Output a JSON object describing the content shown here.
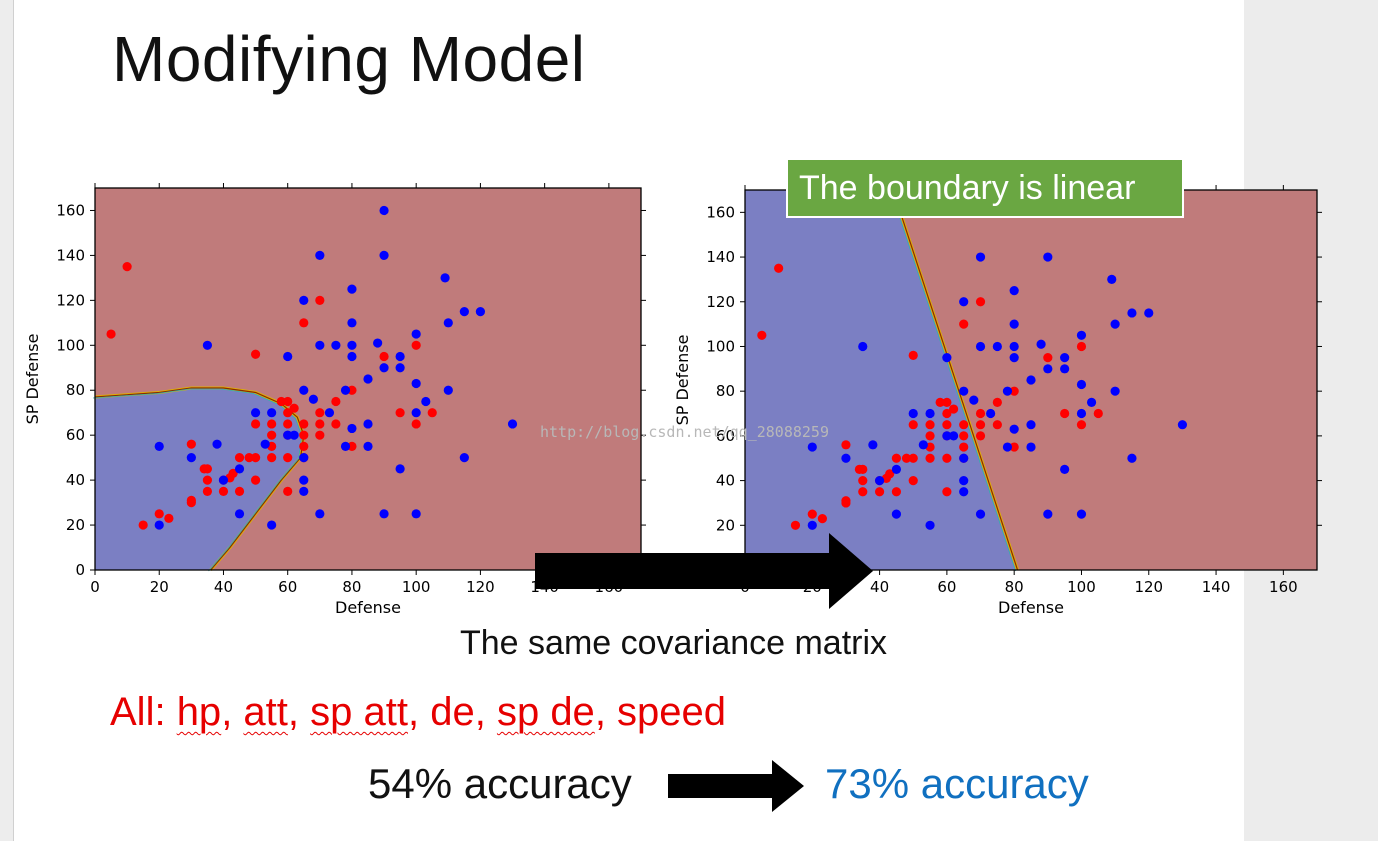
{
  "slide": {
    "title": "Modifying Model",
    "callout": "The boundary is linear",
    "covariance_note": "The same covariance matrix",
    "features_prefix": "All: ",
    "features": [
      "hp",
      "att",
      "sp att",
      "de",
      "sp de",
      "speed"
    ],
    "features_underlined": [
      true,
      true,
      true,
      false,
      true,
      false
    ],
    "accuracy_before": "54% accuracy",
    "accuracy_after": "73% accuracy",
    "watermark": "http://blog.csdn.net/qq_28088259"
  },
  "colors": {
    "class_red_region": "#c07b7b",
    "class_blue_region": "#7b7fc3",
    "red_points": "#ff0000",
    "blue_points": "#0000ff",
    "callout_bg": "#6aa742",
    "features_text": "#e60000",
    "accuracy_after_text": "#1070c0"
  },
  "chart_data": [
    {
      "type": "scatter",
      "title": "",
      "xlabel": "Defense",
      "ylabel": "SP Defense",
      "xlim": [
        0,
        170
      ],
      "ylim": [
        0,
        170
      ],
      "xticks": [
        0,
        20,
        40,
        60,
        80,
        100,
        120,
        140,
        160
      ],
      "yticks": [
        0,
        20,
        40,
        60,
        80,
        100,
        120,
        140,
        160
      ],
      "decision_boundary": "quadratic",
      "boundary": [
        [
          0,
          77
        ],
        [
          20,
          79
        ],
        [
          30,
          81
        ],
        [
          40,
          81
        ],
        [
          50,
          79
        ],
        [
          58,
          74
        ],
        [
          63,
          68
        ],
        [
          65,
          60
        ],
        [
          64,
          50
        ],
        [
          58,
          40
        ],
        [
          50,
          25
        ],
        [
          42,
          10
        ],
        [
          36,
          0
        ]
      ],
      "series": [
        {
          "color": "red",
          "points": [
            [
              5,
              105
            ],
            [
              10,
              135
            ],
            [
              15,
              20
            ],
            [
              20,
              25
            ],
            [
              23,
              23
            ],
            [
              30,
              56
            ],
            [
              30,
              31
            ],
            [
              30,
              30
            ],
            [
              34,
              45
            ],
            [
              35,
              45
            ],
            [
              35,
              40
            ],
            [
              35,
              35
            ],
            [
              40,
              35
            ],
            [
              40,
              40
            ],
            [
              42,
              41
            ],
            [
              43,
              43
            ],
            [
              45,
              35
            ],
            [
              45,
              50
            ],
            [
              48,
              50
            ],
            [
              50,
              96
            ],
            [
              50,
              50
            ],
            [
              50,
              40
            ],
            [
              50,
              65
            ],
            [
              55,
              65
            ],
            [
              55,
              50
            ],
            [
              55,
              55
            ],
            [
              55,
              60
            ],
            [
              58,
              75
            ],
            [
              60,
              50
            ],
            [
              60,
              35
            ],
            [
              60,
              60
            ],
            [
              60,
              65
            ],
            [
              60,
              70
            ],
            [
              60,
              75
            ],
            [
              62,
              72
            ],
            [
              65,
              65
            ],
            [
              65,
              60
            ],
            [
              65,
              55
            ],
            [
              65,
              50
            ],
            [
              65,
              110
            ],
            [
              70,
              120
            ],
            [
              70,
              60
            ],
            [
              70,
              65
            ],
            [
              70,
              70
            ],
            [
              75,
              65
            ],
            [
              75,
              75
            ],
            [
              80,
              55
            ],
            [
              80,
              80
            ],
            [
              90,
              95
            ],
            [
              95,
              70
            ],
            [
              100,
              100
            ],
            [
              100,
              65
            ],
            [
              105,
              70
            ]
          ]
        },
        {
          "color": "blue",
          "points": [
            [
              20,
              20
            ],
            [
              20,
              55
            ],
            [
              30,
              50
            ],
            [
              35,
              100
            ],
            [
              38,
              56
            ],
            [
              40,
              40
            ],
            [
              45,
              25
            ],
            [
              45,
              45
            ],
            [
              50,
              70
            ],
            [
              53,
              56
            ],
            [
              55,
              70
            ],
            [
              55,
              20
            ],
            [
              60,
              95
            ],
            [
              60,
              60
            ],
            [
              62,
              60
            ],
            [
              65,
              120
            ],
            [
              65,
              80
            ],
            [
              65,
              50
            ],
            [
              65,
              40
            ],
            [
              65,
              35
            ],
            [
              68,
              76
            ],
            [
              70,
              140
            ],
            [
              70,
              100
            ],
            [
              70,
              25
            ],
            [
              73,
              70
            ],
            [
              75,
              100
            ],
            [
              78,
              80
            ],
            [
              78,
              55
            ],
            [
              80,
              125
            ],
            [
              80,
              110
            ],
            [
              80,
              100
            ],
            [
              80,
              95
            ],
            [
              80,
              63
            ],
            [
              85,
              55
            ],
            [
              85,
              85
            ],
            [
              85,
              65
            ],
            [
              88,
              101
            ],
            [
              90,
              160
            ],
            [
              90,
              140
            ],
            [
              90,
              90
            ],
            [
              90,
              25
            ],
            [
              95,
              95
            ],
            [
              95,
              90
            ],
            [
              95,
              45
            ],
            [
              100,
              105
            ],
            [
              100,
              83
            ],
            [
              100,
              70
            ],
            [
              100,
              25
            ],
            [
              103,
              75
            ],
            [
              109,
              130
            ],
            [
              110,
              110
            ],
            [
              110,
              80
            ],
            [
              115,
              115
            ],
            [
              115,
              50
            ],
            [
              120,
              115
            ],
            [
              130,
              65
            ]
          ]
        }
      ]
    },
    {
      "type": "scatter",
      "title": "",
      "xlabel": "Defense",
      "ylabel": "SP Defense",
      "xlim": [
        0,
        170
      ],
      "ylim": [
        0,
        170
      ],
      "xticks": [
        0,
        20,
        40,
        60,
        80,
        100,
        120,
        140,
        160
      ],
      "yticks": [
        20,
        40,
        60,
        80,
        100,
        120,
        140,
        160
      ],
      "decision_boundary": "linear",
      "boundary": [
        [
          44,
          170
        ],
        [
          81,
          0
        ]
      ],
      "series": [
        {
          "color": "red",
          "points": [
            [
              5,
              105
            ],
            [
              10,
              135
            ],
            [
              15,
              20
            ],
            [
              20,
              25
            ],
            [
              23,
              23
            ],
            [
              30,
              56
            ],
            [
              30,
              31
            ],
            [
              30,
              30
            ],
            [
              34,
              45
            ],
            [
              35,
              45
            ],
            [
              35,
              40
            ],
            [
              35,
              35
            ],
            [
              40,
              35
            ],
            [
              40,
              40
            ],
            [
              42,
              41
            ],
            [
              43,
              43
            ],
            [
              45,
              35
            ],
            [
              45,
              50
            ],
            [
              48,
              50
            ],
            [
              50,
              96
            ],
            [
              50,
              50
            ],
            [
              50,
              40
            ],
            [
              50,
              65
            ],
            [
              55,
              65
            ],
            [
              55,
              50
            ],
            [
              55,
              55
            ],
            [
              55,
              60
            ],
            [
              58,
              75
            ],
            [
              60,
              50
            ],
            [
              60,
              35
            ],
            [
              60,
              60
            ],
            [
              60,
              65
            ],
            [
              60,
              70
            ],
            [
              60,
              75
            ],
            [
              62,
              72
            ],
            [
              65,
              65
            ],
            [
              65,
              60
            ],
            [
              65,
              55
            ],
            [
              65,
              50
            ],
            [
              65,
              110
            ],
            [
              70,
              120
            ],
            [
              70,
              60
            ],
            [
              70,
              65
            ],
            [
              70,
              70
            ],
            [
              75,
              65
            ],
            [
              75,
              75
            ],
            [
              80,
              55
            ],
            [
              80,
              80
            ],
            [
              90,
              95
            ],
            [
              95,
              70
            ],
            [
              100,
              100
            ],
            [
              100,
              65
            ],
            [
              105,
              70
            ]
          ]
        },
        {
          "color": "blue",
          "points": [
            [
              20,
              20
            ],
            [
              20,
              55
            ],
            [
              30,
              50
            ],
            [
              35,
              100
            ],
            [
              38,
              56
            ],
            [
              40,
              40
            ],
            [
              45,
              25
            ],
            [
              45,
              45
            ],
            [
              50,
              70
            ],
            [
              53,
              56
            ],
            [
              55,
              70
            ],
            [
              55,
              20
            ],
            [
              60,
              95
            ],
            [
              60,
              60
            ],
            [
              62,
              60
            ],
            [
              65,
              120
            ],
            [
              65,
              80
            ],
            [
              65,
              50
            ],
            [
              65,
              40
            ],
            [
              65,
              35
            ],
            [
              68,
              76
            ],
            [
              70,
              140
            ],
            [
              70,
              100
            ],
            [
              70,
              25
            ],
            [
              73,
              70
            ],
            [
              75,
              100
            ],
            [
              78,
              80
            ],
            [
              78,
              55
            ],
            [
              80,
              125
            ],
            [
              80,
              110
            ],
            [
              80,
              100
            ],
            [
              80,
              95
            ],
            [
              80,
              63
            ],
            [
              85,
              55
            ],
            [
              85,
              85
            ],
            [
              85,
              65
            ],
            [
              88,
              101
            ],
            [
              90,
              160
            ],
            [
              90,
              140
            ],
            [
              90,
              90
            ],
            [
              90,
              25
            ],
            [
              95,
              95
            ],
            [
              95,
              90
            ],
            [
              95,
              45
            ],
            [
              100,
              105
            ],
            [
              100,
              83
            ],
            [
              100,
              70
            ],
            [
              100,
              25
            ],
            [
              103,
              75
            ],
            [
              109,
              130
            ],
            [
              110,
              110
            ],
            [
              110,
              80
            ],
            [
              115,
              115
            ],
            [
              115,
              50
            ],
            [
              120,
              115
            ],
            [
              130,
              65
            ]
          ]
        }
      ]
    }
  ]
}
